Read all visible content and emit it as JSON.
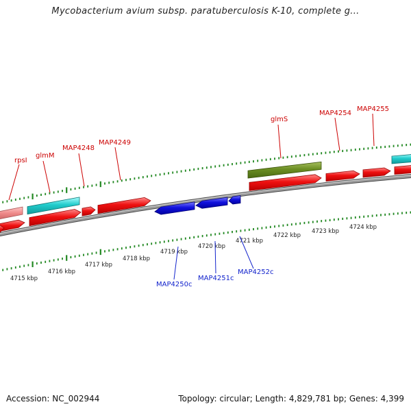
{
  "title": "Mycobacterium avium subsp. paratuberculosis K-10, complete g...",
  "footer": {
    "accession": "Accession: NC_002944",
    "summary": "Topology: circular; Length: 4,829,781 bp; Genes: 4,399"
  },
  "colors": {
    "forward_gene": "#ee1111",
    "forward_gene_alt": "#ee8888",
    "forward_label": "#cc0000",
    "reverse_gene": "#1111dd",
    "reverse_label": "#1122cc",
    "rna_gene": "#22cccc",
    "highlight_gene": "#6b8e23",
    "backbone": "#888888",
    "ticks": "#228822"
  },
  "ruler": {
    "unit": "kbp",
    "labels": [
      "4715 kbp",
      "4716 kbp",
      "4717 kbp",
      "4718 kbp",
      "4719 kbp",
      "4720 kbp",
      "4721 kbp",
      "4722 kbp",
      "4723 kbp",
      "4724 kbp"
    ]
  },
  "forward_gene_labels": [
    "rpsI",
    "glmM",
    "MAP4248",
    "MAP4249",
    "glmS",
    "MAP4254",
    "MAP4255"
  ],
  "reverse_gene_labels": [
    "MAP4250c",
    "MAP4251c",
    "MAP4252c"
  ]
}
